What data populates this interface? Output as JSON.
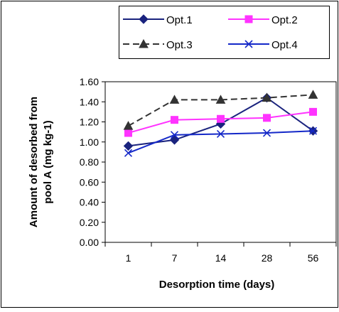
{
  "chart_data": {
    "type": "line",
    "categories": [
      "1",
      "7",
      "14",
      "28",
      "56"
    ],
    "xlabel": "Desorption time (days)",
    "ylabel_lines": [
      "Amount of desorbed from",
      "pool A (mg kg-1)"
    ],
    "ylim": [
      0,
      1.6
    ],
    "yticks": [
      "0.00",
      "0.20",
      "0.40",
      "0.60",
      "0.80",
      "1.00",
      "1.20",
      "1.40",
      "1.60"
    ],
    "grid": false,
    "legend_position": "top",
    "series": [
      {
        "name": "Opt.1",
        "values": [
          0.96,
          1.02,
          1.18,
          1.44,
          1.11
        ],
        "color": "#1a237e",
        "marker": "diamond",
        "dash": "solid"
      },
      {
        "name": "Opt.2",
        "values": [
          1.09,
          1.22,
          1.23,
          1.24,
          1.3
        ],
        "color": "#ff33ff",
        "marker": "square",
        "dash": "solid"
      },
      {
        "name": "Opt.3",
        "values": [
          1.16,
          1.42,
          1.42,
          1.44,
          1.47
        ],
        "color": "#333333",
        "marker": "triangle",
        "dash": "dashed"
      },
      {
        "name": "Opt.4",
        "values": [
          0.89,
          1.07,
          1.08,
          1.09,
          1.11
        ],
        "color": "#1428c8",
        "marker": "x",
        "dash": "solid"
      }
    ]
  }
}
